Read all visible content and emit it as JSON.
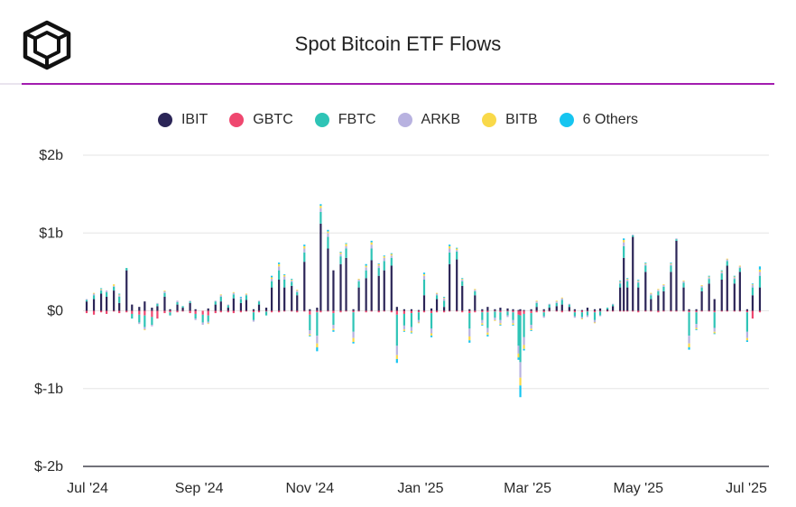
{
  "title": "Spot Bitcoin ETF Flows",
  "legend": [
    {
      "name": "IBIT",
      "color": "#2b2557"
    },
    {
      "name": "GBTC",
      "color": "#ef476f"
    },
    {
      "name": "FBTC",
      "color": "#2ec4b6"
    },
    {
      "name": "ARKB",
      "color": "#b8b2e0"
    },
    {
      "name": "BITB",
      "color": "#f9d949"
    },
    {
      "name": "6 Others",
      "color": "#16c5f0"
    }
  ],
  "chart_data": {
    "type": "bar",
    "stacked": true,
    "ylim": [
      -2,
      2
    ],
    "y_unit": "billion USD",
    "y_ticks": [
      "$2b",
      "$1b",
      "$0",
      "$-1b",
      "$-2b"
    ],
    "x_ticks": [
      "Jul '24",
      "Sep '24",
      "Nov '24",
      "Jan '25",
      "Mar '25",
      "May '25",
      "Jul '25"
    ],
    "grid": true,
    "legend_position": "top-center",
    "series_names": [
      "IBIT",
      "GBTC",
      "FBTC",
      "ARKB",
      "BITB",
      "6 Others"
    ],
    "days": [
      {
        "date": "2024-07-01",
        "v": [
          0.12,
          -0.03,
          0.02,
          0.01,
          0,
          0
        ]
      },
      {
        "date": "2024-07-05",
        "v": [
          0.15,
          -0.05,
          0.05,
          0.02,
          0.01,
          0
        ]
      },
      {
        "date": "2024-07-09",
        "v": [
          0.22,
          -0.02,
          0.04,
          0.01,
          0.01,
          0.01
        ]
      },
      {
        "date": "2024-07-12",
        "v": [
          0.18,
          -0.04,
          0.06,
          0.02,
          0,
          0
        ]
      },
      {
        "date": "2024-07-16",
        "v": [
          0.26,
          -0.01,
          0.05,
          0.01,
          0.02,
          0
        ]
      },
      {
        "date": "2024-07-19",
        "v": [
          0.1,
          -0.03,
          0.08,
          0.02,
          0.01,
          0.01
        ]
      },
      {
        "date": "2024-07-23",
        "v": [
          0.52,
          -0.02,
          0.03,
          0,
          0,
          0
        ]
      },
      {
        "date": "2024-07-26",
        "v": [
          0.08,
          -0.04,
          -0.06,
          0,
          0,
          0
        ]
      },
      {
        "date": "2024-07-30",
        "v": [
          0.05,
          -0.05,
          -0.1,
          -0.02,
          0,
          0
        ]
      },
      {
        "date": "2024-08-02",
        "v": [
          0.12,
          -0.06,
          -0.15,
          -0.03,
          -0.01,
          0
        ]
      },
      {
        "date": "2024-08-06",
        "v": [
          0.04,
          -0.08,
          -0.1,
          -0.02,
          0,
          0
        ]
      },
      {
        "date": "2024-08-09",
        "v": [
          0.06,
          -0.1,
          0.03,
          0.01,
          0,
          0
        ]
      },
      {
        "date": "2024-08-13",
        "v": [
          0.18,
          -0.03,
          0.05,
          0.02,
          0.01,
          0
        ]
      },
      {
        "date": "2024-08-16",
        "v": [
          0.02,
          -0.02,
          -0.04,
          0,
          0,
          0
        ]
      },
      {
        "date": "2024-08-20",
        "v": [
          0.08,
          -0.02,
          0.03,
          0.02,
          0,
          0
        ]
      },
      {
        "date": "2024-08-23",
        "v": [
          0.04,
          -0.01,
          0.02,
          0,
          0,
          0
        ]
      },
      {
        "date": "2024-08-27",
        "v": [
          0.1,
          -0.03,
          0.02,
          0.01,
          0,
          0
        ]
      },
      {
        "date": "2024-08-30",
        "v": [
          0.02,
          -0.04,
          -0.06,
          -0.02,
          0,
          0
        ]
      },
      {
        "date": "2024-09-03",
        "v": [
          0,
          -0.05,
          -0.1,
          -0.03,
          0,
          0
        ]
      },
      {
        "date": "2024-09-06",
        "v": [
          0.03,
          -0.06,
          -0.08,
          -0.02,
          -0.01,
          0
        ]
      },
      {
        "date": "2024-09-10",
        "v": [
          0.08,
          -0.03,
          0.04,
          0.01,
          0,
          0
        ]
      },
      {
        "date": "2024-09-13",
        "v": [
          0.12,
          -0.02,
          0.06,
          0.02,
          0.01,
          0
        ]
      },
      {
        "date": "2024-09-17",
        "v": [
          0.04,
          -0.02,
          0.03,
          0.01,
          0,
          0
        ]
      },
      {
        "date": "2024-09-20",
        "v": [
          0.16,
          -0.03,
          0.05,
          0.02,
          0.01,
          0
        ]
      },
      {
        "date": "2024-09-24",
        "v": [
          0.1,
          -0.02,
          0.05,
          0.02,
          0,
          0.01
        ]
      },
      {
        "date": "2024-09-27",
        "v": [
          0.14,
          -0.01,
          0.06,
          0.01,
          0.01,
          0
        ]
      },
      {
        "date": "2024-10-01",
        "v": [
          0.02,
          -0.02,
          -0.1,
          -0.02,
          0,
          0
        ]
      },
      {
        "date": "2024-10-04",
        "v": [
          0.08,
          -0.02,
          0.04,
          0.01,
          0,
          0
        ]
      },
      {
        "date": "2024-10-08",
        "v": [
          0.04,
          -0.01,
          -0.05,
          0,
          0,
          0
        ]
      },
      {
        "date": "2024-10-11",
        "v": [
          0.3,
          -0.02,
          0.08,
          0.03,
          0.02,
          0.02
        ]
      },
      {
        "date": "2024-10-15",
        "v": [
          0.4,
          -0.02,
          0.12,
          0.05,
          0.03,
          0.02
        ]
      },
      {
        "date": "2024-10-18",
        "v": [
          0.3,
          -0.01,
          0.1,
          0.04,
          0.02,
          0.01
        ]
      },
      {
        "date": "2024-10-22",
        "v": [
          0.32,
          -0.01,
          0.05,
          0.02,
          0.01,
          0.01
        ]
      },
      {
        "date": "2024-10-25",
        "v": [
          0.2,
          -0.02,
          0.04,
          0.02,
          0.01,
          0
        ]
      },
      {
        "date": "2024-10-29",
        "v": [
          0.63,
          -0.01,
          0.12,
          0.05,
          0.03,
          0.02
        ]
      },
      {
        "date": "2024-11-01",
        "v": [
          0.02,
          -0.05,
          -0.2,
          -0.05,
          -0.02,
          -0.01
        ]
      },
      {
        "date": "2024-11-05",
        "v": [
          0.04,
          -0.02,
          -0.3,
          -0.1,
          -0.05,
          -0.05
        ]
      },
      {
        "date": "2024-11-07",
        "v": [
          1.12,
          -0.02,
          0.15,
          0.05,
          0.03,
          0.02
        ]
      },
      {
        "date": "2024-11-11",
        "v": [
          0.8,
          -0.01,
          0.15,
          0.05,
          0.02,
          0.02
        ]
      },
      {
        "date": "2024-11-14",
        "v": [
          0.52,
          -0.03,
          -0.15,
          -0.05,
          -0.02,
          -0.02
        ]
      },
      {
        "date": "2024-11-18",
        "v": [
          0.6,
          -0.02,
          0.1,
          0.03,
          0.02,
          0.01
        ]
      },
      {
        "date": "2024-11-21",
        "v": [
          0.68,
          -0.01,
          0.12,
          0.03,
          0.03,
          0.01
        ]
      },
      {
        "date": "2024-11-25",
        "v": [
          0.02,
          -0.02,
          -0.25,
          -0.08,
          -0.05,
          -0.02
        ]
      },
      {
        "date": "2024-11-28",
        "v": [
          0.3,
          -0.01,
          0.08,
          0.02,
          0.01,
          0
        ]
      },
      {
        "date": "2024-12-02",
        "v": [
          0.42,
          -0.02,
          0.1,
          0.04,
          0.02,
          0.02
        ]
      },
      {
        "date": "2024-12-05",
        "v": [
          0.65,
          -0.01,
          0.15,
          0.05,
          0.03,
          0.02
        ]
      },
      {
        "date": "2024-12-09",
        "v": [
          0.45,
          -0.02,
          0.1,
          0.03,
          0.02,
          0.01
        ]
      },
      {
        "date": "2024-12-12",
        "v": [
          0.52,
          -0.01,
          0.12,
          0.04,
          0.02,
          0.01
        ]
      },
      {
        "date": "2024-12-16",
        "v": [
          0.58,
          -0.02,
          0.1,
          0.03,
          0.02,
          0.01
        ]
      },
      {
        "date": "2024-12-19",
        "v": [
          0.05,
          -0.05,
          -0.4,
          -0.12,
          -0.05,
          -0.05
        ]
      },
      {
        "date": "2024-12-23",
        "v": [
          0.02,
          -0.04,
          -0.15,
          -0.05,
          -0.02,
          -0.01
        ]
      },
      {
        "date": "2024-12-27",
        "v": [
          0.02,
          -0.03,
          -0.18,
          -0.05,
          -0.02,
          -0.01
        ]
      },
      {
        "date": "2024-12-31",
        "v": [
          0.01,
          -0.02,
          -0.1,
          -0.03,
          -0.01,
          0
        ]
      },
      {
        "date": "2025-01-03",
        "v": [
          0.2,
          -0.02,
          0.2,
          0.05,
          0.02,
          0.02
        ]
      },
      {
        "date": "2025-01-07",
        "v": [
          0.03,
          -0.03,
          -0.2,
          -0.06,
          -0.03,
          -0.02
        ]
      },
      {
        "date": "2025-01-10",
        "v": [
          0.15,
          -0.02,
          0.05,
          0.02,
          0.01,
          0
        ]
      },
      {
        "date": "2025-01-14",
        "v": [
          0.05,
          -0.02,
          0.08,
          0.03,
          0.01,
          0.01
        ]
      },
      {
        "date": "2025-01-17",
        "v": [
          0.6,
          -0.01,
          0.15,
          0.05,
          0.03,
          0.02
        ]
      },
      {
        "date": "2025-01-21",
        "v": [
          0.66,
          -0.01,
          0.1,
          0.02,
          0.02,
          0.01
        ]
      },
      {
        "date": "2025-01-24",
        "v": [
          0.32,
          -0.02,
          0.06,
          0.02,
          0.01,
          0.01
        ]
      },
      {
        "date": "2025-01-28",
        "v": [
          0.02,
          -0.03,
          -0.2,
          -0.1,
          -0.05,
          -0.03
        ]
      },
      {
        "date": "2025-01-31",
        "v": [
          0.2,
          -0.02,
          0.05,
          0.02,
          0.01,
          0
        ]
      },
      {
        "date": "2025-02-04",
        "v": [
          0.02,
          -0.02,
          -0.1,
          -0.04,
          -0.02,
          -0.01
        ]
      },
      {
        "date": "2025-02-07",
        "v": [
          0.05,
          -0.02,
          -0.2,
          -0.06,
          -0.03,
          -0.02
        ]
      },
      {
        "date": "2025-02-11",
        "v": [
          0.02,
          -0.01,
          -0.08,
          -0.03,
          -0.01,
          0
        ]
      },
      {
        "date": "2025-02-14",
        "v": [
          0.04,
          -0.02,
          -0.1,
          -0.04,
          -0.02,
          -0.01
        ]
      },
      {
        "date": "2025-02-18",
        "v": [
          0.03,
          -0.01,
          -0.05,
          -0.02,
          0,
          0
        ]
      },
      {
        "date": "2025-02-21",
        "v": [
          0.02,
          -0.02,
          -0.1,
          -0.04,
          -0.02,
          -0.01
        ]
      },
      {
        "date": "2025-02-24",
        "v": [
          0.01,
          -0.05,
          -0.4,
          -0.1,
          -0.05,
          -0.03
        ]
      },
      {
        "date": "2025-02-25",
        "v": [
          0.02,
          -0.06,
          -0.6,
          -0.2,
          -0.1,
          -0.15
        ]
      },
      {
        "date": "2025-02-27",
        "v": [
          0.01,
          -0.04,
          -0.3,
          -0.1,
          -0.05,
          -0.02
        ]
      },
      {
        "date": "2025-03-03",
        "v": [
          0.02,
          -0.03,
          -0.15,
          -0.05,
          -0.02,
          -0.01
        ]
      },
      {
        "date": "2025-03-06",
        "v": [
          0.05,
          -0.02,
          0.05,
          0.02,
          0.01,
          0
        ]
      },
      {
        "date": "2025-03-10",
        "v": [
          0.02,
          -0.02,
          -0.05,
          -0.02,
          0,
          0
        ]
      },
      {
        "date": "2025-03-13",
        "v": [
          0.04,
          -0.01,
          0.04,
          0.01,
          0,
          0
        ]
      },
      {
        "date": "2025-03-17",
        "v": [
          0.06,
          -0.01,
          0.04,
          0.02,
          0.01,
          0
        ]
      },
      {
        "date": "2025-03-20",
        "v": [
          0.08,
          -0.02,
          0.06,
          0.02,
          0.01,
          0
        ]
      },
      {
        "date": "2025-03-24",
        "v": [
          0.05,
          -0.01,
          0.03,
          0.01,
          0,
          0
        ]
      },
      {
        "date": "2025-03-27",
        "v": [
          0.02,
          -0.02,
          -0.05,
          -0.02,
          0,
          0
        ]
      },
      {
        "date": "2025-03-31",
        "v": [
          0.01,
          -0.02,
          -0.06,
          -0.02,
          -0.01,
          0
        ]
      },
      {
        "date": "2025-04-03",
        "v": [
          0.04,
          -0.01,
          -0.05,
          -0.02,
          0,
          0
        ]
      },
      {
        "date": "2025-04-07",
        "v": [
          0.02,
          -0.02,
          -0.1,
          -0.03,
          -0.01,
          0
        ]
      },
      {
        "date": "2025-04-10",
        "v": [
          0.03,
          -0.01,
          -0.05,
          -0.01,
          0,
          0
        ]
      },
      {
        "date": "2025-04-14",
        "v": [
          0.02,
          -0.01,
          0.02,
          0,
          0,
          0
        ]
      },
      {
        "date": "2025-04-17",
        "v": [
          0.06,
          -0.01,
          0.02,
          0.01,
          0,
          0
        ]
      },
      {
        "date": "2025-04-21",
        "v": [
          0.3,
          -0.01,
          0.05,
          0.02,
          0.01,
          0.01
        ]
      },
      {
        "date": "2025-04-23",
        "v": [
          0.68,
          -0.01,
          0.15,
          0.05,
          0.03,
          0.02
        ]
      },
      {
        "date": "2025-04-25",
        "v": [
          0.3,
          -0.01,
          0.08,
          0.02,
          0.01,
          0.01
        ]
      },
      {
        "date": "2025-04-28",
        "v": [
          0.95,
          -0.01,
          0.02,
          0.01,
          0,
          0
        ]
      },
      {
        "date": "2025-05-01",
        "v": [
          0.3,
          -0.02,
          0.06,
          0.02,
          0.01,
          0.01
        ]
      },
      {
        "date": "2025-05-05",
        "v": [
          0.5,
          -0.01,
          0.08,
          0.02,
          0.01,
          0.01
        ]
      },
      {
        "date": "2025-05-08",
        "v": [
          0.15,
          -0.01,
          0.05,
          0.02,
          0.01,
          0
        ]
      },
      {
        "date": "2025-05-12",
        "v": [
          0.2,
          -0.02,
          0.05,
          0.02,
          0.01,
          0
        ]
      },
      {
        "date": "2025-05-15",
        "v": [
          0.25,
          -0.01,
          0.06,
          0.02,
          0.01,
          0
        ]
      },
      {
        "date": "2025-05-19",
        "v": [
          0.5,
          -0.01,
          0.08,
          0.02,
          0.01,
          0.01
        ]
      },
      {
        "date": "2025-05-22",
        "v": [
          0.9,
          -0.01,
          0.02,
          0.01,
          0,
          0
        ]
      },
      {
        "date": "2025-05-26",
        "v": [
          0.3,
          -0.01,
          0.06,
          0.02,
          0.01,
          0
        ]
      },
      {
        "date": "2025-05-29",
        "v": [
          0.02,
          -0.02,
          -0.3,
          -0.1,
          -0.05,
          -0.03
        ]
      },
      {
        "date": "2025-06-02",
        "v": [
          0.02,
          -0.02,
          -0.15,
          -0.05,
          -0.02,
          -0.01
        ]
      },
      {
        "date": "2025-06-05",
        "v": [
          0.25,
          -0.01,
          0.05,
          0.02,
          0.01,
          0
        ]
      },
      {
        "date": "2025-06-09",
        "v": [
          0.35,
          -0.01,
          0.06,
          0.02,
          0.01,
          0.01
        ]
      },
      {
        "date": "2025-06-12",
        "v": [
          0.15,
          -0.02,
          -0.2,
          -0.05,
          -0.02,
          -0.01
        ]
      },
      {
        "date": "2025-06-16",
        "v": [
          0.4,
          -0.01,
          0.08,
          0.02,
          0.01,
          0.01
        ]
      },
      {
        "date": "2025-06-19",
        "v": [
          0.58,
          -0.01,
          0.06,
          0.02,
          0.01,
          0
        ]
      },
      {
        "date": "2025-06-23",
        "v": [
          0.35,
          -0.01,
          0.06,
          0.02,
          0.01,
          0.01
        ]
      },
      {
        "date": "2025-06-26",
        "v": [
          0.5,
          -0.01,
          0.05,
          0.02,
          0.01,
          0
        ]
      },
      {
        "date": "2025-06-30",
        "v": [
          0.02,
          -0.02,
          -0.25,
          -0.08,
          -0.03,
          -0.02
        ]
      },
      {
        "date": "2025-07-03",
        "v": [
          0.2,
          -0.1,
          0.1,
          0.03,
          0.01,
          0.01
        ]
      },
      {
        "date": "2025-07-07",
        "v": [
          0.3,
          -0.02,
          0.15,
          0.05,
          0.03,
          0.04
        ]
      }
    ]
  }
}
